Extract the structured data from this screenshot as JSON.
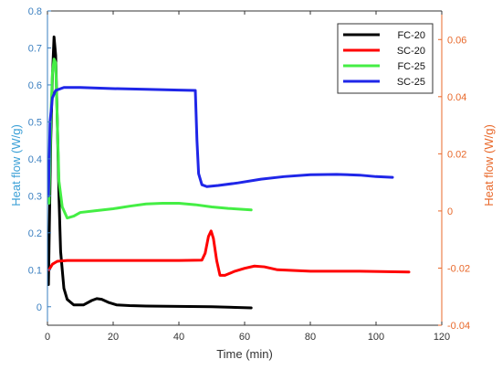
{
  "chart_data": {
    "type": "line",
    "xlabel": "Time (min)",
    "ylabel_left": "Heat flow (W/g)",
    "ylabel_right": "Heat flow (W/g)",
    "xlim": [
      0,
      120
    ],
    "ylim_left": [
      -0.05,
      0.8
    ],
    "ylim_right": [
      -0.04,
      0.07
    ],
    "xticks": [
      "0",
      "20",
      "40",
      "60",
      "80",
      "100",
      "120"
    ],
    "yticks_left": [
      "0",
      "0.1",
      "0.2",
      "0.3",
      "0.4",
      "0.5",
      "0.6",
      "0.7",
      "0.8"
    ],
    "yticks_right": [
      "-0.04",
      "-0.02",
      "0",
      "0.02",
      "0.04",
      "0.06"
    ],
    "grid": false,
    "legend_position": "top-right",
    "series": [
      {
        "name": "FC-20",
        "axis": "left",
        "color": "#000000",
        "points": [
          [
            0.3,
            0.06
          ],
          [
            1.0,
            0.45
          ],
          [
            1.5,
            0.62
          ],
          [
            2.0,
            0.73
          ],
          [
            2.5,
            0.68
          ],
          [
            3.0,
            0.5
          ],
          [
            3.5,
            0.3
          ],
          [
            4.0,
            0.15
          ],
          [
            5.0,
            0.05
          ],
          [
            6.0,
            0.02
          ],
          [
            8.0,
            0.005
          ],
          [
            11.0,
            0.005
          ],
          [
            13.5,
            0.017
          ],
          [
            15.0,
            0.022
          ],
          [
            16.5,
            0.02
          ],
          [
            18.5,
            0.012
          ],
          [
            21.0,
            0.005
          ],
          [
            25.0,
            0.003
          ],
          [
            30.0,
            0.002
          ],
          [
            40.0,
            0.001
          ],
          [
            50.0,
            0.0
          ],
          [
            62.0,
            -0.003
          ]
        ]
      },
      {
        "name": "SC-20",
        "axis": "left",
        "color": "#ff0000",
        "points": [
          [
            0.5,
            0.1
          ],
          [
            1.5,
            0.115
          ],
          [
            3.0,
            0.123
          ],
          [
            6.0,
            0.125
          ],
          [
            20.0,
            0.125
          ],
          [
            40.0,
            0.125
          ],
          [
            47.0,
            0.126
          ],
          [
            48.0,
            0.145
          ],
          [
            49.0,
            0.19
          ],
          [
            49.8,
            0.205
          ],
          [
            50.5,
            0.185
          ],
          [
            51.5,
            0.125
          ],
          [
            52.5,
            0.085
          ],
          [
            54.0,
            0.085
          ],
          [
            57.0,
            0.096
          ],
          [
            60.0,
            0.104
          ],
          [
            63.0,
            0.11
          ],
          [
            66.0,
            0.108
          ],
          [
            70.0,
            0.1
          ],
          [
            80.0,
            0.096
          ],
          [
            95.0,
            0.096
          ],
          [
            110.0,
            0.094
          ]
        ]
      },
      {
        "name": "FC-25",
        "axis": "left",
        "color": "#44ee44",
        "points": [
          [
            0.5,
            0.28
          ],
          [
            1.0,
            0.5
          ],
          [
            1.5,
            0.63
          ],
          [
            2.0,
            0.67
          ],
          [
            2.5,
            0.66
          ],
          [
            3.0,
            0.5
          ],
          [
            3.5,
            0.34
          ],
          [
            4.5,
            0.27
          ],
          [
            6.0,
            0.24
          ],
          [
            8.0,
            0.245
          ],
          [
            10.0,
            0.255
          ],
          [
            15.0,
            0.26
          ],
          [
            20.0,
            0.265
          ],
          [
            25.0,
            0.272
          ],
          [
            30.0,
            0.278
          ],
          [
            35.0,
            0.28
          ],
          [
            40.0,
            0.28
          ],
          [
            45.0,
            0.276
          ],
          [
            50.0,
            0.27
          ],
          [
            55.0,
            0.266
          ],
          [
            62.0,
            0.262
          ]
        ]
      },
      {
        "name": "SC-25",
        "axis": "left",
        "color": "#1f26e8",
        "points": [
          [
            0.3,
            0.3
          ],
          [
            0.8,
            0.5
          ],
          [
            1.5,
            0.565
          ],
          [
            2.5,
            0.585
          ],
          [
            5.0,
            0.593
          ],
          [
            10.0,
            0.593
          ],
          [
            20.0,
            0.59
          ],
          [
            30.0,
            0.588
          ],
          [
            40.0,
            0.586
          ],
          [
            45.0,
            0.585
          ],
          [
            45.5,
            0.45
          ],
          [
            46.0,
            0.36
          ],
          [
            47.0,
            0.33
          ],
          [
            48.5,
            0.325
          ],
          [
            52.0,
            0.328
          ],
          [
            58.0,
            0.335
          ],
          [
            65.0,
            0.345
          ],
          [
            72.0,
            0.352
          ],
          [
            80.0,
            0.357
          ],
          [
            88.0,
            0.358
          ],
          [
            95.0,
            0.356
          ],
          [
            100.0,
            0.352
          ],
          [
            105.0,
            0.35
          ]
        ]
      }
    ]
  }
}
